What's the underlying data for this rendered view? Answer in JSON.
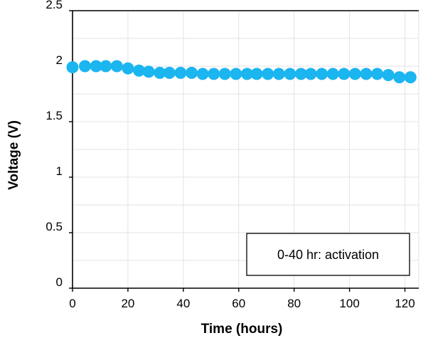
{
  "chart_data": {
    "type": "scatter",
    "title": "",
    "xlabel": "Time (hours)",
    "ylabel": "Voltage (V)",
    "xlim": [
      0,
      125
    ],
    "ylim": [
      0,
      2.5
    ],
    "x_ticks": [
      "0",
      "20",
      "40",
      "60",
      "80",
      "100",
      "120"
    ],
    "y_ticks": [
      "0",
      "0.5",
      "1",
      "1.5",
      "2",
      "2.5"
    ],
    "grid": true,
    "marker_color": "#1BB5F0",
    "annotation": "0-40 hr: activation",
    "series": [
      {
        "x": [
          0,
          4.5,
          8.5,
          12,
          16,
          20,
          24,
          27.5,
          31.5,
          35,
          39,
          43,
          47,
          51,
          55,
          59,
          63,
          66.5,
          70.5,
          74.5,
          78.5,
          82.5,
          86,
          90,
          94,
          98,
          102,
          106,
          110,
          114,
          118,
          122
        ],
        "y": [
          1.99,
          2.0,
          2.0,
          2.0,
          2.0,
          1.98,
          1.96,
          1.95,
          1.94,
          1.94,
          1.94,
          1.94,
          1.93,
          1.93,
          1.93,
          1.93,
          1.93,
          1.93,
          1.93,
          1.93,
          1.93,
          1.93,
          1.93,
          1.93,
          1.93,
          1.93,
          1.93,
          1.93,
          1.93,
          1.92,
          1.9,
          1.9
        ]
      }
    ]
  }
}
